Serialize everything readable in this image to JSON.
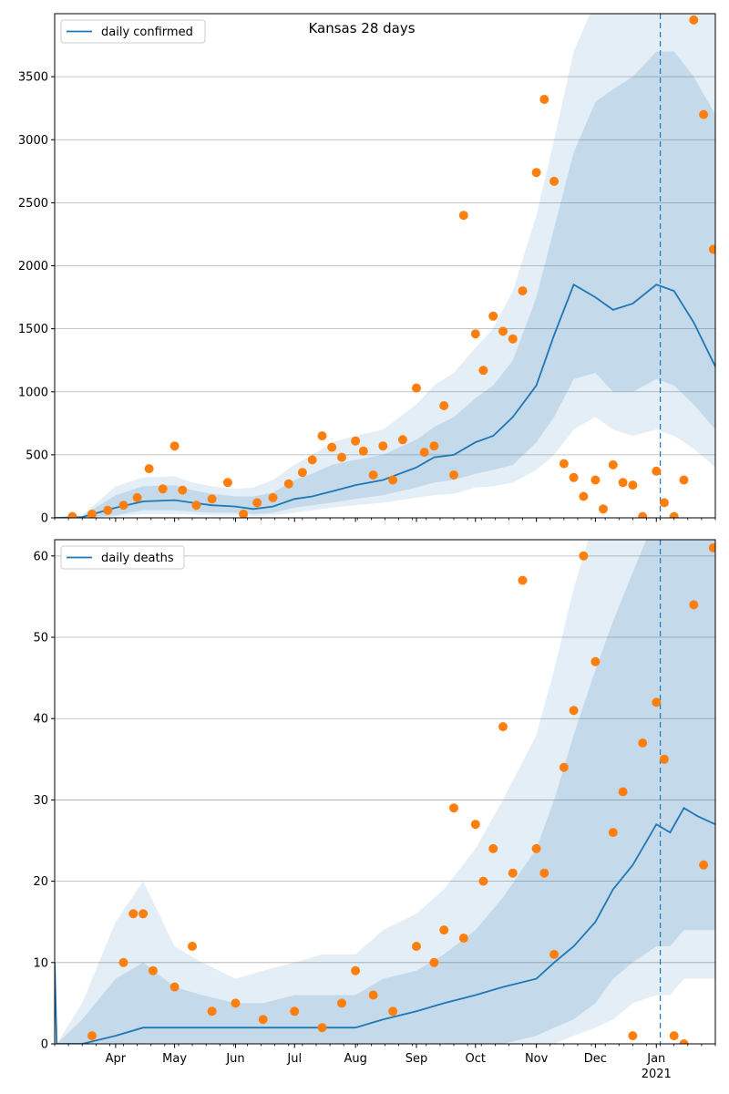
{
  "chart_data": [
    {
      "type": "line",
      "title": "Kansas 28 days",
      "legend": {
        "label": "daily confirmed",
        "placement": "top-left"
      },
      "xlim": [
        "2020-03-01",
        "2021-01-31"
      ],
      "ylim": [
        0,
        4000
      ],
      "yticks": [
        0,
        500,
        1000,
        1500,
        2000,
        2500,
        3000,
        3500
      ],
      "grid_y": true,
      "vline": "2021-01-03",
      "colors": {
        "line": "#1f77b4",
        "points": "#ff7f0e",
        "band": "#1f77b4"
      },
      "series": [
        {
          "x": [
            "2020-03-01",
            "2020-03-15",
            "2020-04-01",
            "2020-04-15",
            "2020-05-01",
            "2020-05-10",
            "2020-05-20",
            "2020-06-01",
            "2020-06-10",
            "2020-06-20",
            "2020-07-01",
            "2020-07-10",
            "2020-07-20",
            "2020-08-01",
            "2020-08-15",
            "2020-09-01",
            "2020-09-10",
            "2020-09-20",
            "2020-10-01",
            "2020-10-10",
            "2020-10-20",
            "2020-11-01",
            "2020-11-10",
            "2020-11-20",
            "2020-12-01",
            "2020-12-10",
            "2020-12-20",
            "2021-01-01",
            "2021-01-10",
            "2021-01-20",
            "2021-01-31"
          ],
          "y": [
            0,
            5,
            80,
            130,
            140,
            120,
            100,
            90,
            70,
            90,
            150,
            170,
            210,
            260,
            300,
            400,
            480,
            500,
            600,
            650,
            800,
            1050,
            1450,
            1850,
            1750,
            1650,
            1700,
            1850,
            1800,
            1550,
            1200
          ]
        }
      ],
      "bands": [
        {
          "lower": [
            0,
            0,
            10,
            30,
            30,
            25,
            20,
            20,
            15,
            20,
            40,
            60,
            80,
            100,
            120,
            160,
            180,
            190,
            240,
            250,
            280,
            380,
            500,
            700,
            800,
            700,
            650,
            700,
            650,
            550,
            400
          ],
          "upper": [
            0,
            20,
            250,
            320,
            330,
            280,
            250,
            230,
            240,
            300,
            420,
            500,
            600,
            650,
            700,
            900,
            1050,
            1150,
            1350,
            1500,
            1800,
            2400,
            3000,
            3700,
            4100,
            4100,
            4100,
            4100,
            4100,
            4100,
            4100
          ]
        },
        {
          "lower": [
            0,
            0,
            20,
            60,
            60,
            50,
            40,
            40,
            30,
            40,
            80,
            100,
            120,
            150,
            180,
            240,
            280,
            300,
            350,
            380,
            420,
            600,
            800,
            1100,
            1150,
            1000,
            1000,
            1100,
            1050,
            900,
            700
          ],
          "upper": [
            0,
            15,
            180,
            250,
            260,
            220,
            190,
            170,
            170,
            200,
            300,
            350,
            420,
            460,
            500,
            620,
            720,
            800,
            950,
            1050,
            1250,
            1750,
            2300,
            2900,
            3300,
            3400,
            3500,
            3700,
            3700,
            3500,
            3200
          ]
        }
      ],
      "points": {
        "x": [
          "2020-03-10",
          "2020-03-20",
          "2020-03-28",
          "2020-04-05",
          "2020-04-12",
          "2020-04-18",
          "2020-04-25",
          "2020-05-01",
          "2020-05-05",
          "2020-05-12",
          "2020-05-20",
          "2020-05-28",
          "2020-06-05",
          "2020-06-12",
          "2020-06-20",
          "2020-06-28",
          "2020-07-05",
          "2020-07-10",
          "2020-07-15",
          "2020-07-20",
          "2020-07-25",
          "2020-08-01",
          "2020-08-05",
          "2020-08-10",
          "2020-08-15",
          "2020-08-20",
          "2020-08-25",
          "2020-09-01",
          "2020-09-05",
          "2020-09-10",
          "2020-09-15",
          "2020-09-20",
          "2020-09-25",
          "2020-10-01",
          "2020-10-05",
          "2020-10-10",
          "2020-10-15",
          "2020-10-20",
          "2020-10-25",
          "2020-11-01",
          "2020-11-05",
          "2020-11-10",
          "2020-11-15",
          "2020-11-20",
          "2020-11-25",
          "2020-12-01",
          "2020-12-05",
          "2020-12-10",
          "2020-12-15",
          "2020-12-20",
          "2020-12-25",
          "2021-01-01",
          "2021-01-05",
          "2021-01-10",
          "2021-01-15",
          "2021-01-20",
          "2021-01-25",
          "2021-01-30"
        ],
        "y": [
          10,
          30,
          60,
          100,
          160,
          390,
          230,
          570,
          220,
          100,
          150,
          280,
          30,
          120,
          160,
          270,
          360,
          460,
          650,
          560,
          480,
          610,
          530,
          340,
          570,
          300,
          620,
          1030,
          520,
          570,
          890,
          340,
          2400,
          1460,
          1170,
          1600,
          1480,
          1420,
          1800,
          2740,
          3320,
          2670,
          430,
          320,
          170,
          300,
          70,
          420,
          280,
          260,
          10,
          370,
          120,
          10,
          300,
          3950,
          3200,
          2130
        ]
      }
    },
    {
      "type": "line",
      "title": "",
      "legend": {
        "label": "daily deaths",
        "placement": "top-left"
      },
      "xlim": [
        "2020-03-01",
        "2021-01-31"
      ],
      "ylim": [
        0,
        62
      ],
      "yticks": [
        0,
        10,
        20,
        30,
        40,
        50,
        60
      ],
      "xticks": [
        "Apr",
        "May",
        "Jun",
        "Jul",
        "Aug",
        "Sep",
        "Oct",
        "Nov",
        "Dec",
        "Jan"
      ],
      "xtick_dates": [
        "2020-04-01",
        "2020-05-01",
        "2020-06-01",
        "2020-07-01",
        "2020-08-01",
        "2020-09-01",
        "2020-10-01",
        "2020-11-01",
        "2020-12-01",
        "2021-01-01"
      ],
      "year_label": "2021",
      "grid_y": true,
      "vline": "2021-01-03",
      "colors": {
        "line": "#1f77b4",
        "points": "#ff7f0e",
        "band": "#1f77b4"
      },
      "series": [
        {
          "x": [
            "2020-03-01",
            "2020-03-02",
            "2020-03-15",
            "2020-04-01",
            "2020-04-15",
            "2020-05-01",
            "2020-05-15",
            "2020-06-01",
            "2020-06-15",
            "2020-07-01",
            "2020-07-15",
            "2020-08-01",
            "2020-08-15",
            "2020-09-01",
            "2020-09-15",
            "2020-10-01",
            "2020-10-15",
            "2020-11-01",
            "2020-11-10",
            "2020-11-20",
            "2020-12-01",
            "2020-12-10",
            "2020-12-20",
            "2021-01-01",
            "2021-01-08",
            "2021-01-15",
            "2021-01-22",
            "2021-01-31"
          ],
          "y": [
            10,
            0,
            0,
            1,
            2,
            2,
            2,
            2,
            2,
            2,
            2,
            2,
            3,
            4,
            5,
            6,
            7,
            8,
            10,
            12,
            15,
            19,
            22,
            27,
            26,
            29,
            28,
            27
          ]
        }
      ],
      "bands": [
        {
          "lower": [
            0,
            0,
            0,
            0,
            0,
            0,
            0,
            0,
            0,
            0,
            0,
            0,
            0,
            0,
            0,
            0,
            0,
            0,
            0,
            1,
            2,
            3,
            5,
            6,
            6,
            8,
            8,
            8
          ],
          "upper": [
            0,
            0,
            5,
            15,
            20,
            12,
            10,
            8,
            9,
            10,
            11,
            11,
            14,
            16,
            19,
            24,
            30,
            38,
            46,
            56,
            65,
            65,
            65,
            65,
            65,
            65,
            65,
            65
          ]
        },
        {
          "lower": [
            0,
            0,
            0,
            0,
            0,
            0,
            0,
            0,
            0,
            0,
            0,
            0,
            0,
            0,
            0,
            0,
            0,
            1,
            2,
            3,
            5,
            8,
            10,
            12,
            12,
            14,
            14,
            14
          ],
          "upper": [
            0,
            0,
            3,
            8,
            10,
            7,
            6,
            5,
            5,
            6,
            6,
            6,
            8,
            9,
            11,
            14,
            18,
            24,
            30,
            38,
            46,
            52,
            58,
            65,
            65,
            65,
            65,
            65
          ]
        }
      ],
      "points": {
        "x": [
          "2020-03-20",
          "2020-04-05",
          "2020-04-10",
          "2020-04-15",
          "2020-04-20",
          "2020-05-01",
          "2020-05-10",
          "2020-05-20",
          "2020-06-01",
          "2020-06-15",
          "2020-07-01",
          "2020-07-15",
          "2020-07-25",
          "2020-08-01",
          "2020-08-10",
          "2020-08-20",
          "2020-09-01",
          "2020-09-10",
          "2020-09-15",
          "2020-09-20",
          "2020-09-25",
          "2020-10-01",
          "2020-10-05",
          "2020-10-10",
          "2020-10-15",
          "2020-10-20",
          "2020-10-25",
          "2020-11-01",
          "2020-11-05",
          "2020-11-10",
          "2020-11-15",
          "2020-11-20",
          "2020-11-25",
          "2020-12-01",
          "2020-12-10",
          "2020-12-15",
          "2020-12-20",
          "2020-12-25",
          "2021-01-01",
          "2021-01-05",
          "2021-01-10",
          "2021-01-15",
          "2021-01-20",
          "2021-01-25",
          "2021-01-30"
        ],
        "y": [
          1,
          10,
          16,
          16,
          9,
          7,
          12,
          4,
          5,
          3,
          4,
          2,
          5,
          9,
          6,
          4,
          12,
          10,
          14,
          29,
          13,
          27,
          20,
          24,
          39,
          21,
          57,
          24,
          21,
          11,
          34,
          41,
          60,
          47,
          26,
          31,
          1,
          37,
          42,
          35,
          1,
          0,
          54,
          22,
          61
        ]
      }
    }
  ]
}
